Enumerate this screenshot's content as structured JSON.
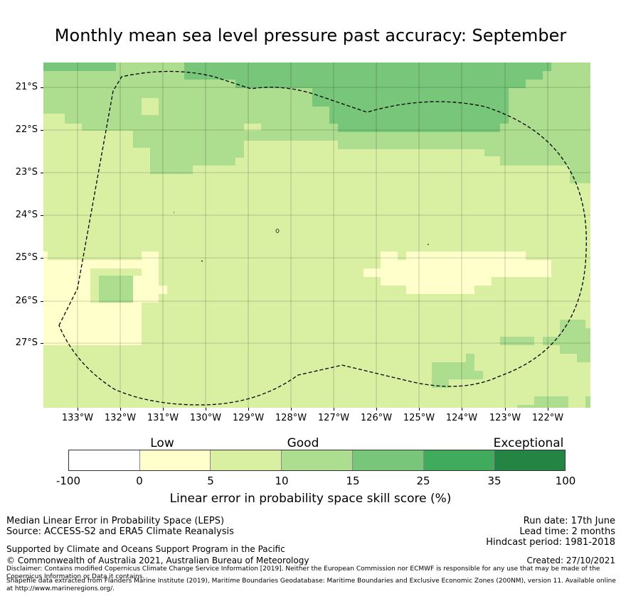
{
  "title": "Monthly mean sea level pressure past accuracy: September",
  "map": {
    "lat_labels": [
      "21°S",
      "22°S",
      "23°S",
      "24°S",
      "25°S",
      "26°S",
      "27°S"
    ],
    "lon_labels": [
      "133°W",
      "132°W",
      "131°W",
      "130°W",
      "129°W",
      "128°W",
      "127°W",
      "126°W",
      "125°W",
      "124°W",
      "123°W",
      "122°W"
    ],
    "layers": [
      "LEPS skill score grid",
      "EEZ boundary (dashed)",
      "islands"
    ]
  },
  "colorbar": {
    "categories": [
      "Low",
      "Good",
      "Exceptional"
    ],
    "ticks": [
      "-100",
      "0",
      "5",
      "10",
      "15",
      "25",
      "35",
      "100"
    ],
    "colors": [
      "#ffffff",
      "#ffffcc",
      "#d9f0a3",
      "#addd8e",
      "#78c679",
      "#41ab5d",
      "#238443"
    ],
    "label": "Linear error in probability space skill score (%)"
  },
  "footer": {
    "left1": "Median Linear Error in Probability Space (LEPS)",
    "left2": "Source: ACCESS-S2 and ERA5 Climate Reanalysis",
    "left3": "Supported by Climate and Oceans Support Program in the Pacific",
    "left4": "© Commonwealth of Australia 2021, Australian Bureau of Meteorology",
    "right1": "Run date: 17th June",
    "right2": "Lead time: 2 months",
    "right3": "Hindcast period: 1981-2018",
    "right4": "Created: 27/10/2021",
    "disclaimer1": "Disclaimer: Contains modified Copernicus Climate Change Service Information [2019]. Neither the European Commission nor ECMWF is responsible for any use that may be made of the Copernicus Information or Data it contains.",
    "disclaimer2": "Shapefile data extracted from Flanders Marine Institute (2019), Maritime Boundaries Geodatabase: Maritime Boundaries and Exclusive Economic Zones (200NM), version 11. Available online at http://www.marineregions.org/."
  }
}
